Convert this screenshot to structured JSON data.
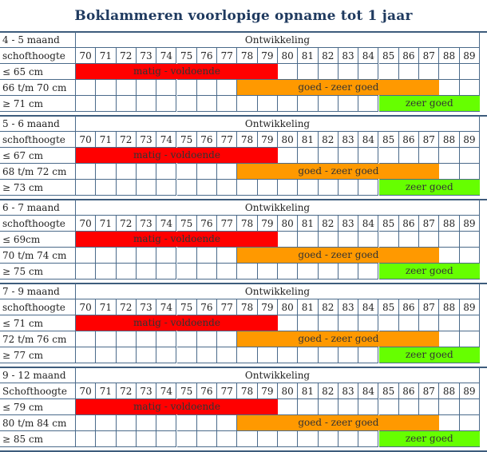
{
  "title": "Boklammeren voorlopige opname tot 1 jaar",
  "development_label": "Ontwikkeling",
  "columns": [
    "70",
    "71",
    "72",
    "73",
    "74",
    "75",
    "76",
    "77",
    "78",
    "79",
    "80",
    "81",
    "82",
    "83",
    "84",
    "85",
    "86",
    "87",
    "88",
    "89"
  ],
  "colors": {
    "red": "#ff0000",
    "orange": "#ff9900",
    "green": "#66ff00",
    "border": "#4a6a8a",
    "title": "#1f3a5f"
  },
  "sections": [
    {
      "age": "4 - 5 maand",
      "height_label": "schofthoogte",
      "rows": [
        {
          "label": "≤ 65 cm",
          "bar": {
            "from": 70,
            "to": 79,
            "color": "red",
            "text": "matig - voldoende"
          }
        },
        {
          "label": "66 t/m 70 cm",
          "bar": {
            "from": 78,
            "to": 87,
            "color": "orange",
            "text": "goed - zeer goed"
          }
        },
        {
          "label": "≥ 71 cm",
          "bar": {
            "from": 85,
            "to": 89,
            "color": "green",
            "text": "zeer goed"
          }
        }
      ]
    },
    {
      "age": "5 - 6 maand",
      "height_label": "schofthoogte",
      "rows": [
        {
          "label": "≤ 67 cm",
          "bar": {
            "from": 70,
            "to": 79,
            "color": "red",
            "text": "matig - voldoende"
          }
        },
        {
          "label": "68 t/m 72 cm",
          "bar": {
            "from": 78,
            "to": 87,
            "color": "orange",
            "text": "goed - zeer goed"
          }
        },
        {
          "label": "≥ 73 cm",
          "bar": {
            "from": 85,
            "to": 89,
            "color": "green",
            "text": "zeer goed"
          }
        }
      ]
    },
    {
      "age": "6 - 7 maand",
      "height_label": "schofthoogte",
      "rows": [
        {
          "label": "≤ 69cm",
          "bar": {
            "from": 70,
            "to": 79,
            "color": "red",
            "text": "matig - voldoende"
          }
        },
        {
          "label": "70 t/m 74 cm",
          "bar": {
            "from": 78,
            "to": 87,
            "color": "orange",
            "text": "goed - zeer goed"
          }
        },
        {
          "label": "≥ 75 cm",
          "bar": {
            "from": 85,
            "to": 89,
            "color": "green",
            "text": "zeer goed"
          }
        }
      ]
    },
    {
      "age": "7 - 9 maand",
      "height_label": "schofthoogte",
      "rows": [
        {
          "label": "≤ 71 cm",
          "bar": {
            "from": 70,
            "to": 79,
            "color": "red",
            "text": "matig - voldoende"
          }
        },
        {
          "label": "72 t/m 76 cm",
          "bar": {
            "from": 78,
            "to": 87,
            "color": "orange",
            "text": "goed - zeer goed"
          }
        },
        {
          "label": "≥ 77 cm",
          "bar": {
            "from": 85,
            "to": 89,
            "color": "green",
            "text": "zeer goed"
          }
        }
      ]
    },
    {
      "age": "9 - 12 maand",
      "height_label": "Schofthoogte",
      "rows": [
        {
          "label": "≤ 79 cm",
          "bar": {
            "from": 70,
            "to": 79,
            "color": "red",
            "text": "matig - voldoende"
          }
        },
        {
          "label": "80 t/m 84 cm",
          "bar": {
            "from": 78,
            "to": 87,
            "color": "orange",
            "text": "goed - zeer goed"
          }
        },
        {
          "label": "≥ 85 cm",
          "bar": {
            "from": 85,
            "to": 89,
            "color": "green",
            "text": "zeer goed"
          }
        }
      ]
    }
  ]
}
